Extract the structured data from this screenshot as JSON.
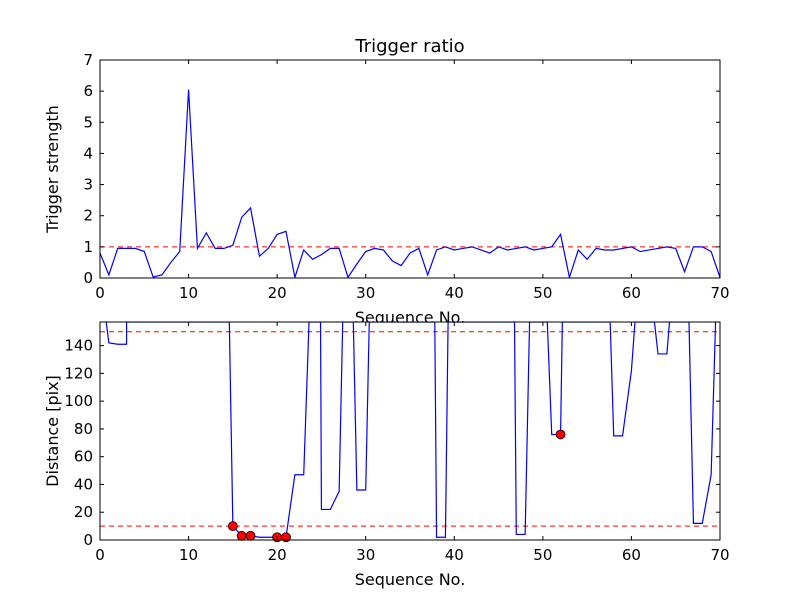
{
  "chart_data": [
    {
      "type": "line",
      "title": "Trigger ratio",
      "xlabel": "Sequence No.",
      "ylabel": "Trigger strength",
      "xlim": [
        0,
        70
      ],
      "ylim": [
        0,
        7
      ],
      "xticks": [
        0,
        10,
        20,
        30,
        40,
        50,
        60,
        70
      ],
      "yticks": [
        0,
        1,
        2,
        3,
        4,
        5,
        6,
        7
      ],
      "grid": false,
      "line_color": "#0000ff",
      "reference_lines": [
        {
          "y": 1,
          "color": "#ff0000",
          "style": "dashed"
        }
      ],
      "x": [
        0,
        1,
        2,
        3,
        4,
        5,
        6,
        7,
        8,
        9,
        10,
        11,
        12,
        13,
        14,
        15,
        16,
        17,
        18,
        19,
        20,
        21,
        22,
        23,
        24,
        25,
        26,
        27,
        28,
        29,
        30,
        31,
        32,
        33,
        34,
        35,
        36,
        37,
        38,
        39,
        40,
        41,
        42,
        43,
        44,
        45,
        46,
        47,
        48,
        49,
        50,
        51,
        52,
        53,
        54,
        55,
        56,
        57,
        58,
        59,
        60,
        61,
        62,
        63,
        64,
        65,
        66,
        67,
        68,
        69,
        70
      ],
      "y": [
        0.8,
        0.1,
        0.95,
        0.95,
        0.95,
        0.85,
        0.03,
        0.1,
        0.5,
        0.85,
        6.05,
        0.95,
        1.45,
        0.95,
        0.95,
        1.05,
        1.95,
        2.25,
        0.7,
        0.95,
        1.4,
        1.5,
        0.02,
        0.9,
        0.6,
        0.75,
        0.95,
        0.95,
        0.02,
        0.45,
        0.85,
        0.95,
        0.9,
        0.55,
        0.4,
        0.8,
        0.95,
        0.1,
        0.9,
        1.0,
        0.9,
        0.95,
        1.0,
        0.9,
        0.8,
        1.0,
        0.9,
        0.95,
        1.0,
        0.9,
        0.95,
        1.0,
        1.4,
        0.02,
        0.9,
        0.6,
        0.95,
        0.9,
        0.9,
        0.95,
        1.0,
        0.85,
        0.9,
        0.95,
        1.0,
        0.95,
        0.2,
        1.0,
        1.0,
        0.85,
        0.02
      ]
    },
    {
      "type": "line",
      "title": "",
      "xlabel": "Sequence No.",
      "ylabel": "Distance [pix]",
      "xlim": [
        0,
        70
      ],
      "ylim": [
        0,
        157
      ],
      "xticks": [
        0,
        10,
        20,
        30,
        40,
        50,
        60,
        70
      ],
      "yticks": [
        0,
        20,
        40,
        60,
        80,
        100,
        120,
        140
      ],
      "grid": false,
      "line_color": "#0000ff",
      "reference_lines": [
        {
          "y": 150,
          "color": "#ff0000",
          "style": "dashed"
        },
        {
          "y": 10,
          "color": "#ff0000",
          "style": "dashed"
        }
      ],
      "x": [
        0.7,
        1,
        2,
        3,
        3,
        14.6,
        15,
        16,
        17,
        18,
        19,
        20,
        21,
        22,
        23,
        23.6,
        24.9,
        25,
        26,
        27,
        27.4,
        28.6,
        29,
        30,
        30.4,
        37.8,
        38,
        39,
        39.3,
        46.8,
        47,
        48,
        48.5,
        50.5,
        51,
        52,
        52.2,
        57.6,
        58,
        59,
        60,
        60.4,
        62.6,
        63,
        64,
        64.3,
        66.5,
        67,
        68,
        69,
        69.5
      ],
      "y": [
        157,
        142,
        141,
        141,
        157,
        157,
        10,
        3,
        3,
        2,
        2,
        2,
        2,
        47,
        47,
        157,
        157,
        22,
        22,
        35,
        157,
        157,
        36,
        36,
        157,
        157,
        2,
        2,
        157,
        157,
        4,
        4,
        157,
        157,
        76,
        76,
        157,
        157,
        75,
        75,
        122,
        157,
        157,
        134,
        134,
        157,
        157,
        12,
        12,
        47,
        157
      ],
      "points": {
        "color": "#ff0000",
        "x": [
          15,
          16,
          17,
          20,
          21,
          52
        ],
        "y": [
          10,
          3,
          3,
          2,
          2,
          76
        ]
      }
    }
  ]
}
